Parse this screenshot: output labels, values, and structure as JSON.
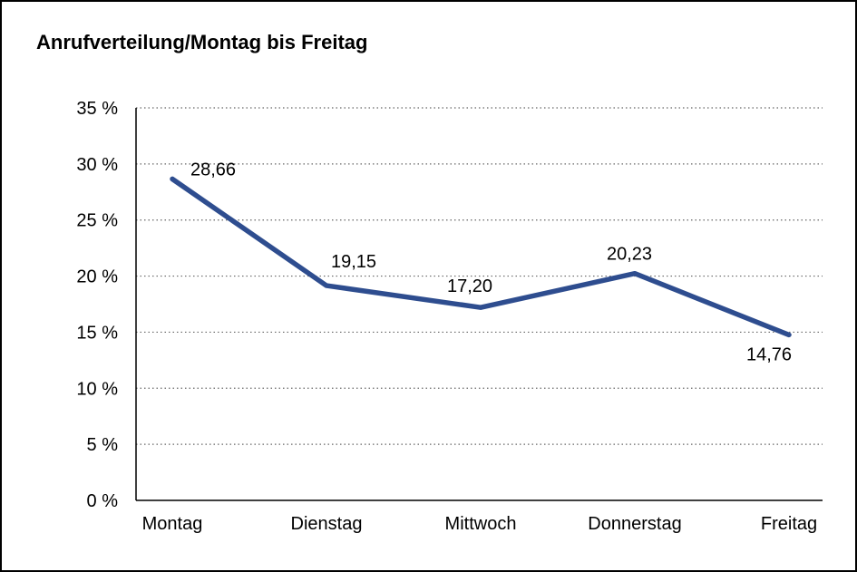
{
  "chart_data": {
    "type": "line",
    "title": "Anrufverteilung/Montag bis Freitag",
    "categories": [
      "Montag",
      "Dienstag",
      "Mittwoch",
      "Donnerstag",
      "Freitag"
    ],
    "values": [
      28.66,
      19.15,
      17.2,
      20.23,
      14.76
    ],
    "value_labels": [
      "28,66",
      "19,15",
      "17,20",
      "20,23",
      "14,76"
    ],
    "y_ticks": [
      0,
      5,
      10,
      15,
      20,
      25,
      30,
      35
    ],
    "y_tick_format": "{v} %",
    "ylim": [
      0,
      35
    ],
    "xlabel": "",
    "ylabel": "",
    "grid": "dotted-horizontal",
    "legend": "none",
    "colors": {
      "line": "#2e4d8f",
      "text": "#000000",
      "grid": "#666666",
      "axis": "#000000",
      "border": "#000000",
      "background": "#ffffff"
    }
  }
}
